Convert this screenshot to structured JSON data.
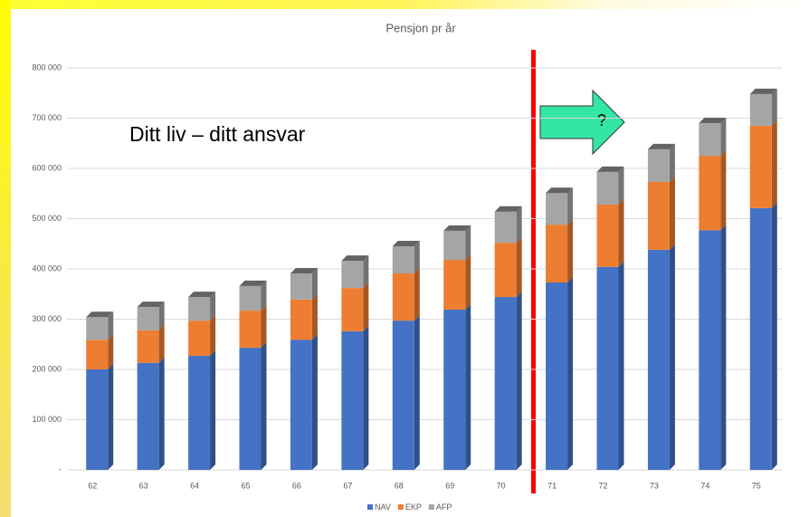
{
  "chart_data": {
    "type": "bar",
    "stacked": true,
    "three_d": true,
    "title": "Pensjon pr år",
    "annotations": [
      "Ditt liv – ditt ansvar",
      "?"
    ],
    "categories": [
      "62",
      "63",
      "64",
      "65",
      "66",
      "67",
      "68",
      "69",
      "70",
      "71",
      "72",
      "73",
      "74",
      "75"
    ],
    "series": [
      {
        "name": "NAV",
        "color": "#4472c4",
        "values": [
          200000,
          213000,
          227000,
          243000,
          259000,
          276000,
          297000,
          319000,
          344000,
          373000,
          404000,
          438000,
          477000,
          521000
        ]
      },
      {
        "name": "EKP",
        "color": "#ed7d31",
        "values": [
          59000,
          65000,
          70000,
          74000,
          80000,
          86000,
          94000,
          99000,
          108000,
          115000,
          124000,
          135000,
          148000,
          164000
        ]
      },
      {
        "name": "AFP",
        "color": "#a5a5a5",
        "values": [
          45000,
          46000,
          47000,
          49000,
          52000,
          54000,
          54000,
          58000,
          62000,
          63000,
          65000,
          65000,
          65000,
          63000
        ]
      }
    ],
    "ylim": [
      0,
      800000
    ],
    "yticks": [
      {
        "value": 0,
        "label": "-"
      },
      {
        "value": 100000,
        "label": "100 000"
      },
      {
        "value": 200000,
        "label": "200 000"
      },
      {
        "value": 300000,
        "label": "300 000"
      },
      {
        "value": 400000,
        "label": "400 000"
      },
      {
        "value": 500000,
        "label": "500 000"
      },
      {
        "value": 600000,
        "label": "600 000"
      },
      {
        "value": 700000,
        "label": "700 000"
      },
      {
        "value": 800000,
        "label": "800 000"
      }
    ],
    "grid": true,
    "legend": "bottom"
  }
}
